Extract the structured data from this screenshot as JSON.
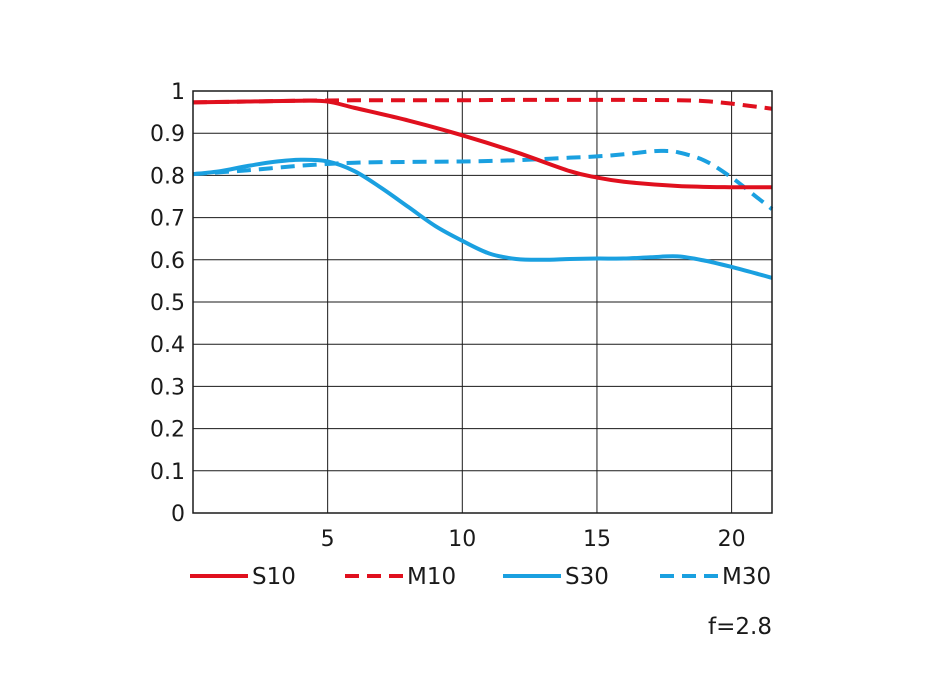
{
  "chart_data": {
    "type": "line",
    "title": "",
    "xlabel": "",
    "ylabel": "",
    "xlim": [
      0,
      21.5
    ],
    "ylim": [
      0,
      1
    ],
    "x_ticks": [
      5,
      10,
      15,
      20
    ],
    "x_tick_labels": [
      "5",
      "10",
      "15",
      "20"
    ],
    "y_ticks": [
      0,
      0.1,
      0.2,
      0.3,
      0.4,
      0.5,
      0.6,
      0.7,
      0.8,
      0.9,
      1
    ],
    "y_tick_labels": [
      "0",
      "0.1",
      "0.2",
      "0.3",
      "0.4",
      "0.5",
      "0.6",
      "0.7",
      "0.8",
      "0.9",
      "1"
    ],
    "grid": true,
    "legend_position": "bottom",
    "annotation": "f=2.8",
    "series": [
      {
        "name": "S10",
        "color": "#e0101e",
        "dash": "solid",
        "x": [
          0,
          2,
          4,
          5,
          6,
          8,
          10,
          12,
          14,
          15,
          16,
          18,
          20,
          21.5
        ],
        "y": [
          0.973,
          0.975,
          0.977,
          0.975,
          0.96,
          0.93,
          0.895,
          0.855,
          0.81,
          0.795,
          0.785,
          0.775,
          0.772,
          0.772
        ]
      },
      {
        "name": "M10",
        "color": "#e0101e",
        "dash": "dashed",
        "x": [
          0,
          2,
          4,
          6,
          8,
          10,
          12,
          14,
          16,
          18,
          19,
          20,
          21.5
        ],
        "y": [
          0.973,
          0.975,
          0.977,
          0.978,
          0.978,
          0.978,
          0.979,
          0.979,
          0.979,
          0.978,
          0.976,
          0.97,
          0.958
        ]
      },
      {
        "name": "S30",
        "color": "#1aa0e0",
        "dash": "solid",
        "x": [
          0,
          1,
          2,
          3,
          4,
          5,
          6,
          7,
          8,
          9,
          10,
          11,
          12,
          13,
          14,
          15,
          16,
          17,
          18,
          19,
          20,
          21,
          21.5
        ],
        "y": [
          0.803,
          0.81,
          0.822,
          0.832,
          0.837,
          0.833,
          0.81,
          0.77,
          0.725,
          0.68,
          0.645,
          0.615,
          0.602,
          0.6,
          0.602,
          0.603,
          0.603,
          0.606,
          0.608,
          0.598,
          0.583,
          0.566,
          0.557
        ]
      },
      {
        "name": "M30",
        "color": "#1aa0e0",
        "dash": "dashed",
        "x": [
          0,
          2,
          4,
          6,
          8,
          10,
          12,
          14,
          15,
          16,
          17,
          17.5,
          18,
          19,
          20,
          21,
          21.5
        ],
        "y": [
          0.803,
          0.812,
          0.823,
          0.83,
          0.832,
          0.833,
          0.836,
          0.842,
          0.845,
          0.85,
          0.857,
          0.858,
          0.855,
          0.835,
          0.795,
          0.745,
          0.72
        ]
      }
    ]
  }
}
